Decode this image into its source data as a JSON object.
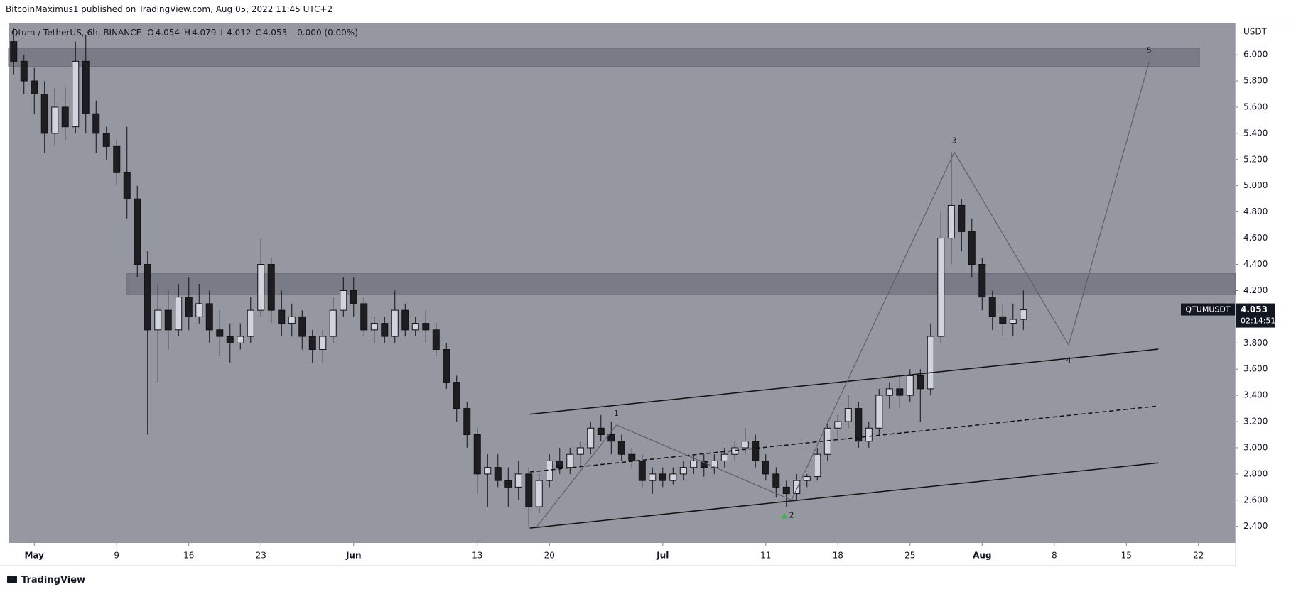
{
  "header": {
    "publisher": "BitcoinMaximus1 published on TradingView.com, Aug 05, 2022 11:45 UTC+2",
    "brand": "TradingView"
  },
  "chart_data": {
    "type": "candlestick",
    "legend": {
      "symbol": "Qtum / TetherUS, 6h, BINANCE",
      "ohlc": [
        {
          "name": "O",
          "value": 4.054
        },
        {
          "name": "H",
          "value": 4.079
        },
        {
          "name": "L",
          "value": 4.012
        },
        {
          "name": "C",
          "value": 4.053
        }
      ],
      "change": "0.000 (0.00%)"
    },
    "y_axis_label": "USDT",
    "x": [
      -2,
      -1,
      0,
      1,
      2,
      3,
      4,
      5,
      6,
      7,
      8,
      9,
      10,
      11,
      12,
      13,
      14,
      15,
      16,
      17,
      18,
      19,
      20,
      21,
      22,
      23,
      24,
      25,
      26,
      27,
      28,
      29,
      30,
      31,
      32,
      33,
      34,
      35,
      36,
      37,
      38,
      39,
      40,
      41,
      42,
      43,
      44,
      45,
      46,
      47,
      48,
      49,
      50,
      51,
      52,
      53,
      54,
      55,
      56,
      57,
      58,
      59,
      60,
      61,
      62,
      63,
      64,
      65,
      66,
      67,
      68,
      69,
      70,
      71,
      72,
      73,
      74,
      75,
      76,
      77,
      78,
      79,
      80,
      81,
      82,
      83,
      84,
      85,
      86,
      87,
      88,
      89,
      90,
      91,
      92,
      93,
      94,
      95,
      96
    ],
    "candles": [
      [
        6.1,
        6.2,
        5.85,
        5.95
      ],
      [
        5.95,
        6.0,
        5.7,
        5.8
      ],
      [
        5.8,
        5.9,
        5.55,
        5.7
      ],
      [
        5.7,
        5.8,
        5.25,
        5.4
      ],
      [
        5.4,
        5.75,
        5.3,
        5.6
      ],
      [
        5.6,
        5.75,
        5.35,
        5.45
      ],
      [
        5.45,
        6.1,
        5.4,
        5.95
      ],
      [
        5.95,
        6.15,
        5.4,
        5.55
      ],
      [
        5.55,
        5.65,
        5.25,
        5.4
      ],
      [
        5.4,
        5.45,
        5.2,
        5.3
      ],
      [
        5.3,
        5.35,
        5.0,
        5.1
      ],
      [
        5.1,
        5.45,
        4.75,
        4.9
      ],
      [
        4.9,
        5.0,
        4.3,
        4.4
      ],
      [
        4.4,
        4.5,
        3.1,
        3.9
      ],
      [
        3.9,
        4.25,
        3.5,
        4.05
      ],
      [
        4.05,
        4.2,
        3.75,
        3.9
      ],
      [
        3.9,
        4.25,
        3.85,
        4.15
      ],
      [
        4.15,
        4.3,
        3.9,
        4.0
      ],
      [
        4.0,
        4.25,
        3.95,
        4.1
      ],
      [
        4.1,
        4.2,
        3.8,
        3.9
      ],
      [
        3.9,
        4.05,
        3.7,
        3.85
      ],
      [
        3.85,
        3.95,
        3.65,
        3.8
      ],
      [
        3.8,
        3.95,
        3.75,
        3.85
      ],
      [
        3.85,
        4.15,
        3.8,
        4.05
      ],
      [
        4.05,
        4.6,
        4.0,
        4.4
      ],
      [
        4.4,
        4.45,
        3.95,
        4.05
      ],
      [
        4.05,
        4.2,
        3.85,
        3.95
      ],
      [
        3.95,
        4.1,
        3.85,
        4.0
      ],
      [
        4.0,
        4.05,
        3.75,
        3.85
      ],
      [
        3.85,
        3.9,
        3.65,
        3.75
      ],
      [
        3.75,
        3.9,
        3.65,
        3.85
      ],
      [
        3.85,
        4.15,
        3.8,
        4.05
      ],
      [
        4.05,
        4.3,
        4.0,
        4.2
      ],
      [
        4.2,
        4.3,
        4.0,
        4.1
      ],
      [
        4.1,
        4.15,
        3.85,
        3.9
      ],
      [
        3.9,
        4.0,
        3.8,
        3.95
      ],
      [
        3.95,
        4.0,
        3.8,
        3.85
      ],
      [
        3.85,
        4.2,
        3.8,
        4.05
      ],
      [
        4.05,
        4.1,
        3.85,
        3.9
      ],
      [
        3.9,
        4.0,
        3.85,
        3.95
      ],
      [
        3.95,
        4.05,
        3.8,
        3.9
      ],
      [
        3.9,
        3.95,
        3.7,
        3.75
      ],
      [
        3.75,
        3.8,
        3.45,
        3.5
      ],
      [
        3.5,
        3.55,
        3.2,
        3.3
      ],
      [
        3.3,
        3.35,
        3.0,
        3.1
      ],
      [
        3.1,
        3.15,
        2.65,
        2.8
      ],
      [
        2.8,
        2.95,
        2.55,
        2.85
      ],
      [
        2.85,
        2.95,
        2.7,
        2.75
      ],
      [
        2.75,
        2.85,
        2.55,
        2.7
      ],
      [
        2.7,
        2.9,
        2.6,
        2.8
      ],
      [
        2.8,
        2.85,
        2.4,
        2.55
      ],
      [
        2.55,
        2.8,
        2.5,
        2.75
      ],
      [
        2.75,
        2.95,
        2.7,
        2.9
      ],
      [
        2.9,
        3.0,
        2.8,
        2.85
      ],
      [
        2.85,
        3.0,
        2.8,
        2.95
      ],
      [
        2.95,
        3.05,
        2.85,
        3.0
      ],
      [
        3.0,
        3.2,
        2.95,
        3.15
      ],
      [
        3.15,
        3.25,
        3.05,
        3.1
      ],
      [
        3.1,
        3.2,
        2.95,
        3.05
      ],
      [
        3.05,
        3.1,
        2.9,
        2.95
      ],
      [
        2.95,
        3.0,
        2.85,
        2.9
      ],
      [
        2.9,
        2.95,
        2.7,
        2.75
      ],
      [
        2.75,
        2.85,
        2.65,
        2.8
      ],
      [
        2.8,
        2.85,
        2.7,
        2.75
      ],
      [
        2.75,
        2.85,
        2.72,
        2.8
      ],
      [
        2.8,
        2.9,
        2.75,
        2.85
      ],
      [
        2.85,
        2.95,
        2.8,
        2.9
      ],
      [
        2.9,
        2.95,
        2.78,
        2.85
      ],
      [
        2.85,
        2.95,
        2.8,
        2.9
      ],
      [
        2.9,
        3.0,
        2.85,
        2.95
      ],
      [
        2.95,
        3.05,
        2.9,
        3.0
      ],
      [
        3.0,
        3.15,
        2.95,
        3.05
      ],
      [
        3.05,
        3.1,
        2.85,
        2.9
      ],
      [
        2.9,
        2.95,
        2.75,
        2.8
      ],
      [
        2.8,
        2.85,
        2.62,
        2.7
      ],
      [
        2.7,
        2.75,
        2.55,
        2.65
      ],
      [
        2.65,
        2.8,
        2.6,
        2.75
      ],
      [
        2.75,
        2.8,
        2.7,
        2.78
      ],
      [
        2.78,
        3.0,
        2.75,
        2.95
      ],
      [
        2.95,
        3.2,
        2.9,
        3.15
      ],
      [
        3.15,
        3.25,
        3.05,
        3.2
      ],
      [
        3.2,
        3.4,
        3.15,
        3.3
      ],
      [
        3.3,
        3.35,
        3.0,
        3.05
      ],
      [
        3.05,
        3.2,
        3.0,
        3.15
      ],
      [
        3.15,
        3.45,
        3.1,
        3.4
      ],
      [
        3.4,
        3.5,
        3.3,
        3.45
      ],
      [
        3.45,
        3.55,
        3.3,
        3.4
      ],
      [
        3.4,
        3.6,
        3.35,
        3.55
      ],
      [
        3.55,
        3.6,
        3.2,
        3.45
      ],
      [
        3.45,
        3.95,
        3.4,
        3.85
      ],
      [
        3.85,
        4.8,
        3.8,
        4.6
      ],
      [
        4.6,
        5.26,
        4.4,
        4.85
      ],
      [
        4.85,
        4.9,
        4.5,
        4.65
      ],
      [
        4.65,
        4.75,
        4.3,
        4.4
      ],
      [
        4.4,
        4.45,
        4.05,
        4.15
      ],
      [
        4.15,
        4.2,
        3.9,
        4.0
      ],
      [
        4.0,
        4.1,
        3.85,
        3.95
      ],
      [
        3.95,
        4.1,
        3.85,
        3.98
      ],
      [
        3.98,
        4.2,
        3.9,
        4.053
      ]
    ],
    "up_color": "#d1d4dc",
    "down_color": "#1e1e22",
    "wick_color": "#111111",
    "background": "#9598a1",
    "xlim": [
      -2.5,
      116.6
    ],
    "ylim": [
      2.274,
      6.239
    ],
    "xticks": [
      {
        "value": 0,
        "label": "May"
      },
      {
        "value": 8,
        "label": "9"
      },
      {
        "value": 15,
        "label": "16"
      },
      {
        "value": 22,
        "label": "23"
      },
      {
        "value": 31,
        "label": "Jun"
      },
      {
        "value": 43,
        "label": "13"
      },
      {
        "value": 50,
        "label": "20"
      },
      {
        "value": 61,
        "label": "Jul"
      },
      {
        "value": 71,
        "label": "11"
      },
      {
        "value": 78,
        "label": "18"
      },
      {
        "value": 85,
        "label": "25"
      },
      {
        "value": 92,
        "label": "Aug"
      },
      {
        "value": 99,
        "label": "8"
      },
      {
        "value": 106,
        "label": "15"
      },
      {
        "value": 113,
        "label": "22"
      }
    ],
    "yticks": [
      {
        "value": 2.4,
        "label": "2.400"
      },
      {
        "value": 2.6,
        "label": "2.600"
      },
      {
        "value": 2.8,
        "label": "2.800"
      },
      {
        "value": 3.0,
        "label": "3.000"
      },
      {
        "value": 3.2,
        "label": "3.200"
      },
      {
        "value": 3.4,
        "label": "3.400"
      },
      {
        "value": 3.6,
        "label": "3.600"
      },
      {
        "value": 3.8,
        "label": "3.800"
      },
      {
        "value": 4.0,
        "label": "4.000"
      },
      {
        "value": 4.2,
        "label": "4.200"
      },
      {
        "value": 4.4,
        "label": "4.400"
      },
      {
        "value": 4.6,
        "label": "4.600"
      },
      {
        "value": 4.8,
        "label": "4.800"
      },
      {
        "value": 5.0,
        "label": "5.000"
      },
      {
        "value": 5.2,
        "label": "5.200"
      },
      {
        "value": 5.4,
        "label": "5.400"
      },
      {
        "value": 5.6,
        "label": "5.600"
      },
      {
        "value": 5.8,
        "label": "5.800"
      },
      {
        "value": 6.0,
        "label": "6.000"
      }
    ],
    "zones": [
      {
        "x": [
          -2.5,
          113.1
        ],
        "y": [
          5.91,
          6.05
        ]
      },
      {
        "x": [
          9.0,
          116.6
        ],
        "y": [
          4.168,
          4.332
        ]
      }
    ],
    "channel": [
      {
        "dashed": false,
        "start": [
          48.1,
          3.256
        ],
        "end": [
          109.1,
          3.753
        ]
      },
      {
        "dashed": true,
        "start": [
          48.1,
          2.815
        ],
        "end": [
          109.1,
          3.319
        ]
      },
      {
        "dashed": false,
        "start": [
          48.1,
          2.387
        ],
        "end": [
          109.1,
          2.885
        ]
      }
    ],
    "wave": {
      "x": [
        48.8,
        56.5,
        73.5,
        89.3,
        100.4,
        108.2
      ],
      "y": [
        2.4,
        3.174,
        2.601,
        5.257,
        3.785,
        5.943
      ],
      "labels": [
        null,
        "1",
        "2",
        "3",
        "4",
        "5"
      ]
    },
    "last_price": {
      "symbol": "QTUMUSDT",
      "value": 4.053,
      "countdown": "02:14:51"
    }
  }
}
